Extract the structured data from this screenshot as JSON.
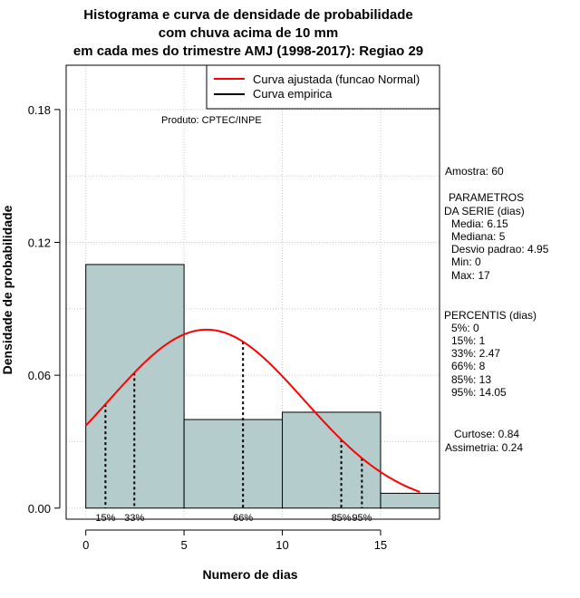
{
  "chart_data": {
    "type": "bar",
    "title_lines": [
      "Histograma e curva de densidade de probabilidade",
      "com chuva acima de 10 mm",
      "em cada mes do trimestre AMJ (1998-2017): Regiao 29"
    ],
    "xlabel": "Numero de dias",
    "ylabel": "Densidade de probabilidade",
    "xlim": [
      -1,
      18
    ],
    "ylim": [
      -0.005,
      0.2
    ],
    "x_ticks": [
      0,
      5,
      10,
      15
    ],
    "y_ticks": [
      0.0,
      0.06,
      0.12,
      0.18
    ],
    "x_tick_labels": [
      "0",
      "5",
      "10",
      "15"
    ],
    "y_tick_labels": [
      "0.00",
      "0.06",
      "0.12",
      "0.18"
    ],
    "grid": true,
    "bins": [
      {
        "x0": 0,
        "x1": 5,
        "density": 0.11
      },
      {
        "x0": 5,
        "x1": 10,
        "density": 0.04
      },
      {
        "x0": 10,
        "x1": 15,
        "density": 0.0433
      },
      {
        "x0": 15,
        "x1": 18,
        "density": 0.0067
      }
    ],
    "bar_color": "#b5cccc",
    "normal_curve": {
      "mean": 6.15,
      "sd": 4.95,
      "x_range": [
        0,
        17
      ],
      "color": "#ff0000"
    },
    "percentile_lines": [
      {
        "x": 1,
        "label": "15%"
      },
      {
        "x": 2.47,
        "label": "33%"
      },
      {
        "x": 8,
        "label": "66%"
      },
      {
        "x": 13,
        "label": "85%"
      },
      {
        "x": 14.05,
        "label": "95%"
      }
    ],
    "legend": {
      "position": "top-right",
      "entries": [
        {
          "label": "Curva ajustada (funcao Normal)",
          "color": "#ff0000"
        },
        {
          "label": "Curva empirica",
          "color": "#000000"
        }
      ]
    },
    "product_label": "Produto: CPTEC/INPE",
    "side_panel": {
      "amostra": "Amostra: 60",
      "param_title_1": "PARAMETROS",
      "param_title_2": "DA SERIE (dias)",
      "params": [
        "Media: 6.15",
        "Mediana: 5",
        "Desvio padrao: 4.95",
        "Min: 0",
        "Max: 17"
      ],
      "percentis_title": "PERCENTIS (dias)",
      "percentis": [
        "5%: 0",
        "15%: 1",
        "33%: 2.47",
        "66%: 8",
        "85%: 13",
        "95%: 14.05"
      ],
      "curtose": "Curtose: 0.84",
      "assimetria": "Assimetria: 0.24"
    }
  }
}
